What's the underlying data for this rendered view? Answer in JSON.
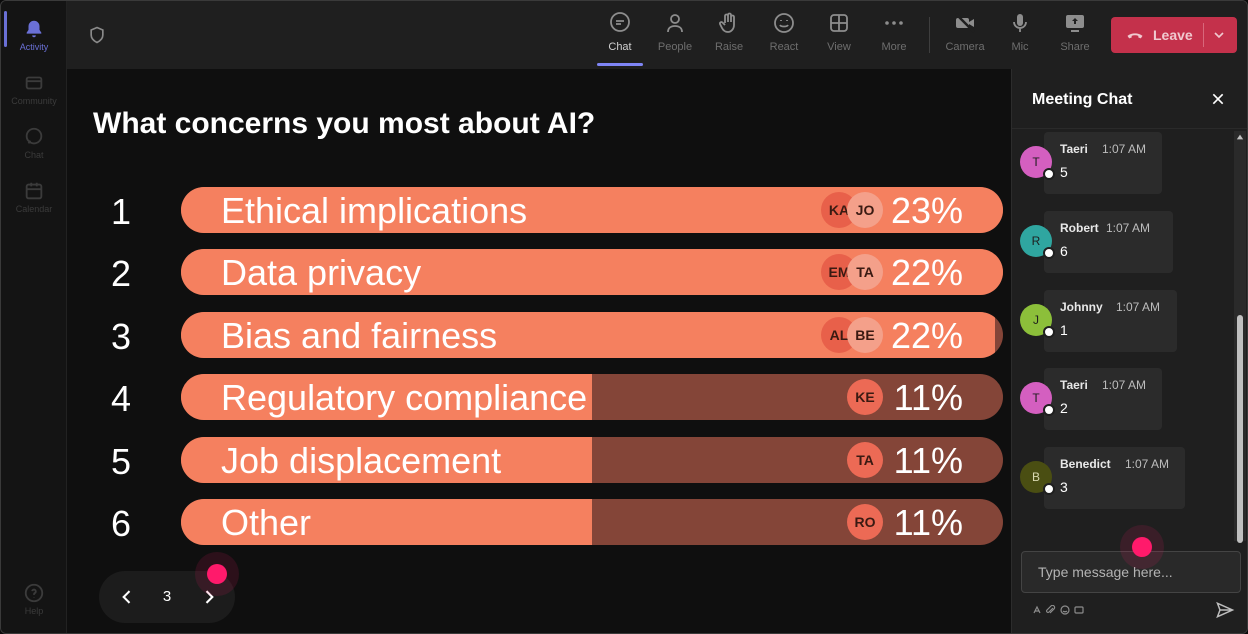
{
  "rail": {
    "items": [
      {
        "label": "Activity",
        "icon": "bell-icon",
        "active": true
      },
      {
        "label": "Community",
        "icon": "community-icon"
      },
      {
        "label": "Chat",
        "icon": "chat-icon"
      },
      {
        "label": "Calendar",
        "icon": "calendar-icon"
      }
    ],
    "help_label": "Help"
  },
  "toolbar": {
    "chat": "Chat",
    "people": "People",
    "raise": "Raise",
    "react": "React",
    "view": "View",
    "more": "More",
    "camera": "Camera",
    "mic": "Mic",
    "share": "Share",
    "leave": "Leave",
    "leave_color": "#c4314b"
  },
  "poll": {
    "question": "What concerns you most about AI?",
    "rows": [
      {
        "num": "1",
        "label": "Ethical implications",
        "pct": "23%",
        "value": 1.0,
        "avatars": [
          "KA",
          "JO"
        ]
      },
      {
        "num": "2",
        "label": "Data privacy",
        "pct": "22%",
        "value": 1.0,
        "avatars": [
          "EM",
          "TA"
        ]
      },
      {
        "num": "3",
        "label": "Bias and fairness",
        "pct": "22%",
        "value": 0.99,
        "avatars": [
          "AL",
          "BE"
        ]
      },
      {
        "num": "4",
        "label": "Regulatory compliance",
        "pct": "11%",
        "value": 0.5,
        "avatars": [
          "KE"
        ]
      },
      {
        "num": "5",
        "label": "Job displacement",
        "pct": "11%",
        "value": 0.5,
        "avatars": [
          "TA"
        ]
      },
      {
        "num": "6",
        "label": "Other",
        "pct": "11%",
        "value": 0.5,
        "avatars": [
          "RO"
        ]
      }
    ],
    "page": "3",
    "bar_color": "#f5805f",
    "track_color": "#844538"
  },
  "chat": {
    "title": "Meeting Chat",
    "messages": [
      {
        "initial": "T",
        "name": "Taeri",
        "time": "1:07 AM",
        "text": "5",
        "color": "#d45fc0"
      },
      {
        "initial": "R",
        "name": "Robert",
        "time": "1:07 AM",
        "text": "6",
        "color": "#2fa6a0"
      },
      {
        "initial": "J",
        "name": "Johnny",
        "time": "1:07 AM",
        "text": "1",
        "color": "#8cbf3a"
      },
      {
        "initial": "T",
        "name": "Taeri",
        "time": "1:07 AM",
        "text": "2",
        "color": "#d45fc0"
      },
      {
        "initial": "B",
        "name": "Benedict",
        "time": "1:07 AM",
        "text": "3",
        "color": "#4a4e12"
      }
    ],
    "compose_placeholder": "Type message here..."
  }
}
